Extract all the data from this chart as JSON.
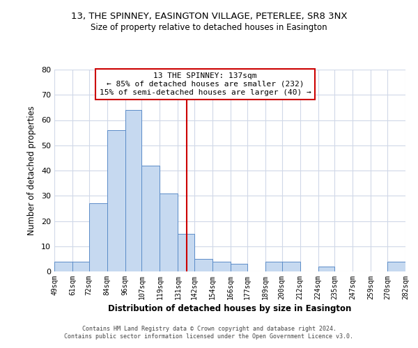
{
  "title": "13, THE SPINNEY, EASINGTON VILLAGE, PETERLEE, SR8 3NX",
  "subtitle": "Size of property relative to detached houses in Easington",
  "xlabel": "Distribution of detached houses by size in Easington",
  "ylabel": "Number of detached properties",
  "bin_edges": [
    49,
    61,
    72,
    84,
    96,
    107,
    119,
    131,
    142,
    154,
    166,
    177,
    189,
    200,
    212,
    224,
    235,
    247,
    259,
    270,
    282
  ],
  "bar_heights": [
    4,
    4,
    27,
    56,
    64,
    42,
    31,
    15,
    5,
    4,
    3,
    0,
    4,
    4,
    0,
    2,
    0,
    0,
    0,
    4
  ],
  "bar_color": "#c6d9f0",
  "bar_edgecolor": "#5b8cc8",
  "vline_x": 137,
  "vline_color": "#cc0000",
  "annotation_title": "13 THE SPINNEY: 137sqm",
  "annotation_line1": "← 85% of detached houses are smaller (232)",
  "annotation_line2": "15% of semi-detached houses are larger (40) →",
  "annotation_box_edgecolor": "#cc0000",
  "ylim": [
    0,
    80
  ],
  "yticks": [
    0,
    10,
    20,
    30,
    40,
    50,
    60,
    70,
    80
  ],
  "tick_labels": [
    "49sqm",
    "61sqm",
    "72sqm",
    "84sqm",
    "96sqm",
    "107sqm",
    "119sqm",
    "131sqm",
    "142sqm",
    "154sqm",
    "166sqm",
    "177sqm",
    "189sqm",
    "200sqm",
    "212sqm",
    "224sqm",
    "235sqm",
    "247sqm",
    "259sqm",
    "270sqm",
    "282sqm"
  ],
  "footer1": "Contains HM Land Registry data © Crown copyright and database right 2024.",
  "footer2": "Contains public sector information licensed under the Open Government Licence v3.0.",
  "background_color": "#ffffff",
  "grid_color": "#d0d8e8"
}
